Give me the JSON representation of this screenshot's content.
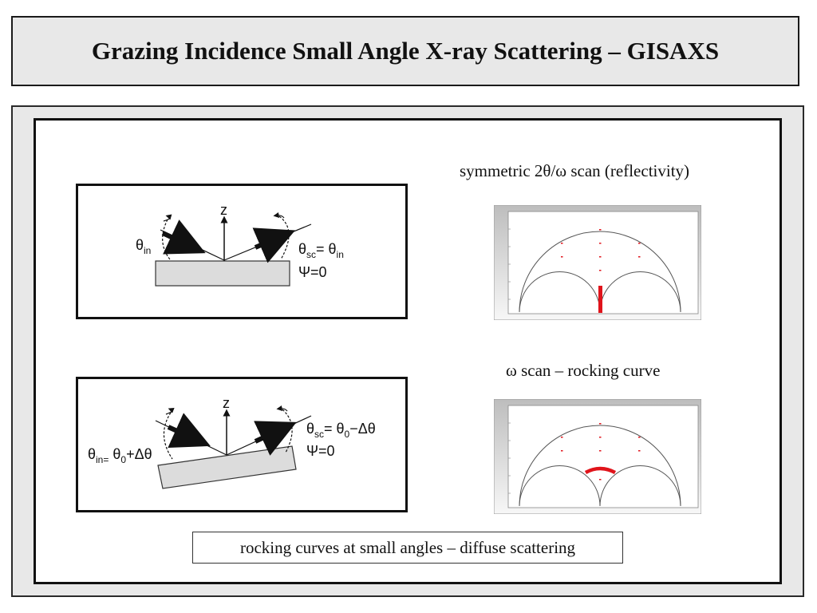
{
  "slide": {
    "title": "Grazing Incidence Small Angle X-ray Scattering – GISAXS",
    "caption_reflectivity": "symmetric 2θ/ω scan (reflectivity)",
    "caption_rocking": "ω scan – rocking curve",
    "bottom_label": "rocking curves at small angles – diffuse scattering"
  },
  "diagram1": {
    "z_label": "z",
    "theta_in_symbol": "θ",
    "theta_in_sub": "in",
    "theta_sc_symbol": "θ",
    "theta_sc_sub": "sc",
    "theta_sc_eq": "= θ",
    "theta_sc_eq_sub": "in",
    "psi_label": "Ψ=0"
  },
  "diagram2": {
    "z_label": "z",
    "theta_in_symbol": "θ",
    "theta_in_sub": "in=",
    "theta_in_rhs": " θ",
    "theta_in_rhs_sub": "0",
    "theta_in_rhs_tail": "+Δθ",
    "theta_sc_symbol": "θ",
    "theta_sc_sub": "sc",
    "theta_sc_eq": "= θ",
    "theta_sc_eq_sub": "0",
    "theta_sc_tail": "−Δθ",
    "psi_label": "Ψ=0"
  },
  "colors": {
    "scan_highlight": "#e0141b",
    "panel_gray": "#e8e8e8",
    "sample_fill": "#dcdcdc"
  },
  "icons": {
    "incident_beam": "thick-arrow",
    "scattered_beam": "thick-arrow",
    "angle_indicator": "curved-double-arrow"
  }
}
